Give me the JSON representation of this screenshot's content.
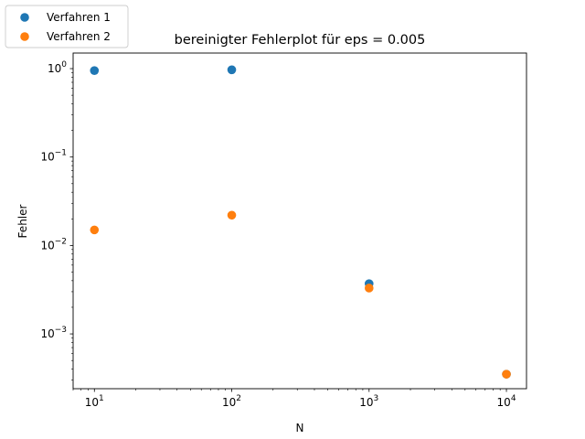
{
  "chart_data": {
    "type": "scatter",
    "title": "bereinigter Fehlerplot für eps = 0.005",
    "xlabel": "N",
    "ylabel": "Fehler",
    "xscale": "log",
    "yscale": "log",
    "xlim": [
      7,
      14000
    ],
    "ylim": [
      0.00024,
      1.5
    ],
    "grid": false,
    "legend_placement": "upper-left-outside",
    "x_ticks": [
      {
        "value": 10,
        "base": "10",
        "exp": "1"
      },
      {
        "value": 100,
        "base": "10",
        "exp": "2"
      },
      {
        "value": 1000,
        "base": "10",
        "exp": "3"
      },
      {
        "value": 10000,
        "base": "10",
        "exp": "4"
      }
    ],
    "y_ticks": [
      {
        "value": 0.001,
        "base": "10",
        "exp": "−3"
      },
      {
        "value": 0.01,
        "base": "10",
        "exp": "−2"
      },
      {
        "value": 0.1,
        "base": "10",
        "exp": "−1"
      },
      {
        "value": 1,
        "base": "10",
        "exp": "0"
      }
    ],
    "series": [
      {
        "name": "Verfahren 1",
        "color": "#1f77b4",
        "x": [
          10,
          100,
          1000,
          10000
        ],
        "y": [
          0.95,
          0.97,
          0.0037,
          0.00035
        ]
      },
      {
        "name": "Verfahren 2",
        "color": "#ff7f0e",
        "x": [
          10,
          100,
          1000,
          10000
        ],
        "y": [
          0.015,
          0.022,
          0.0033,
          0.00035
        ]
      }
    ]
  }
}
